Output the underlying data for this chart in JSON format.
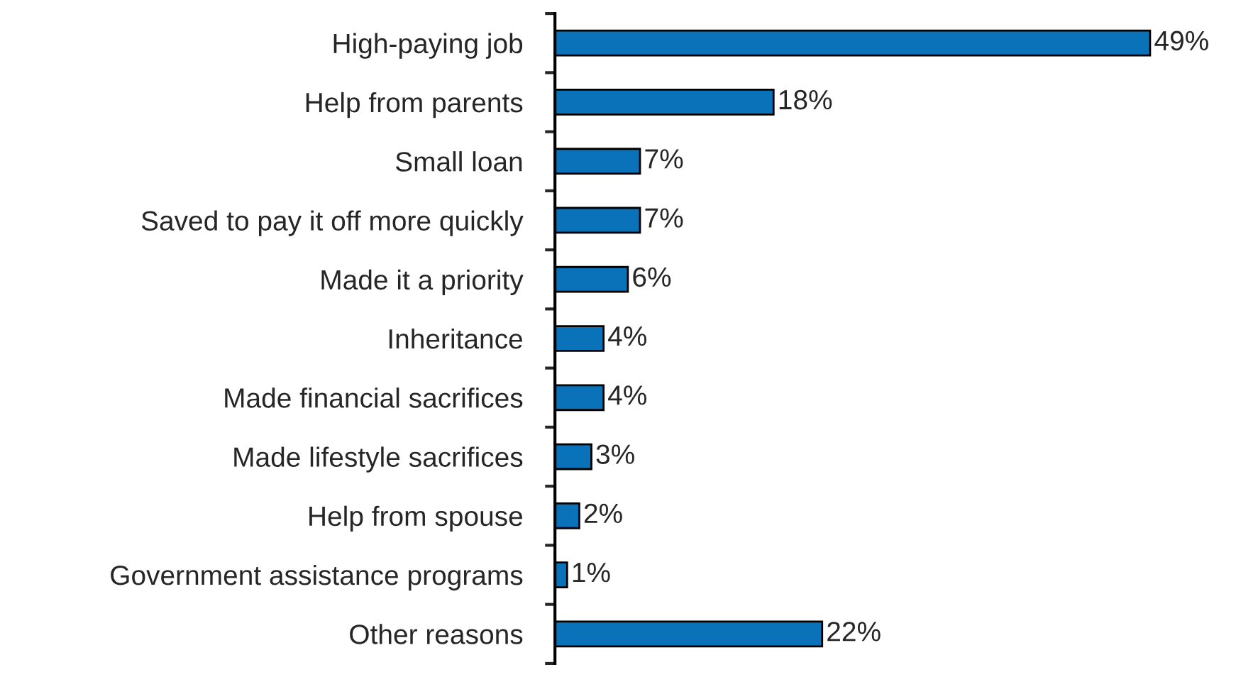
{
  "chart_data": {
    "type": "bar",
    "orientation": "horizontal",
    "categories": [
      "High-paying job",
      "Help from parents",
      "Small loan",
      "Saved to pay it off more quickly",
      "Made it a priority",
      "Inheritance",
      "Made financial sacrifices",
      "Made lifestyle sacrifices",
      "Help from spouse",
      "Government assistance programs",
      "Other reasons"
    ],
    "values": [
      49,
      18,
      7,
      7,
      6,
      4,
      4,
      3,
      2,
      1,
      22
    ],
    "value_labels": [
      "49%",
      "18%",
      "7%",
      "7%",
      "6%",
      "4%",
      "4%",
      "3%",
      "2%",
      "1%",
      "22%"
    ],
    "color": "#0a72b8",
    "grid": false,
    "legend": false
  }
}
